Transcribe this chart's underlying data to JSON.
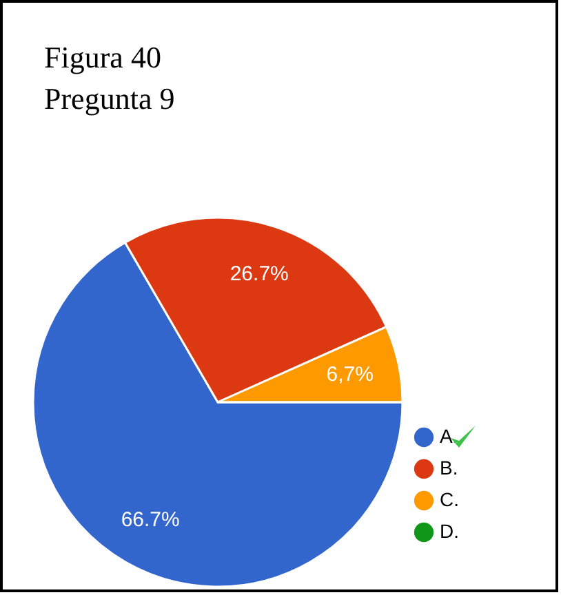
{
  "chart_data": {
    "type": "pie",
    "title": "Figura 40\nPregunta 9",
    "categories": [
      "A.",
      "B.",
      "C.",
      "D."
    ],
    "values": [
      66.7,
      26.7,
      6.7,
      0
    ],
    "colors": [
      "#3366cc",
      "#dc3912",
      "#ff9900",
      "#109618"
    ],
    "value_labels": [
      "66.7%",
      "26.7%",
      "6,7%",
      null
    ],
    "legend": "right"
  }
}
